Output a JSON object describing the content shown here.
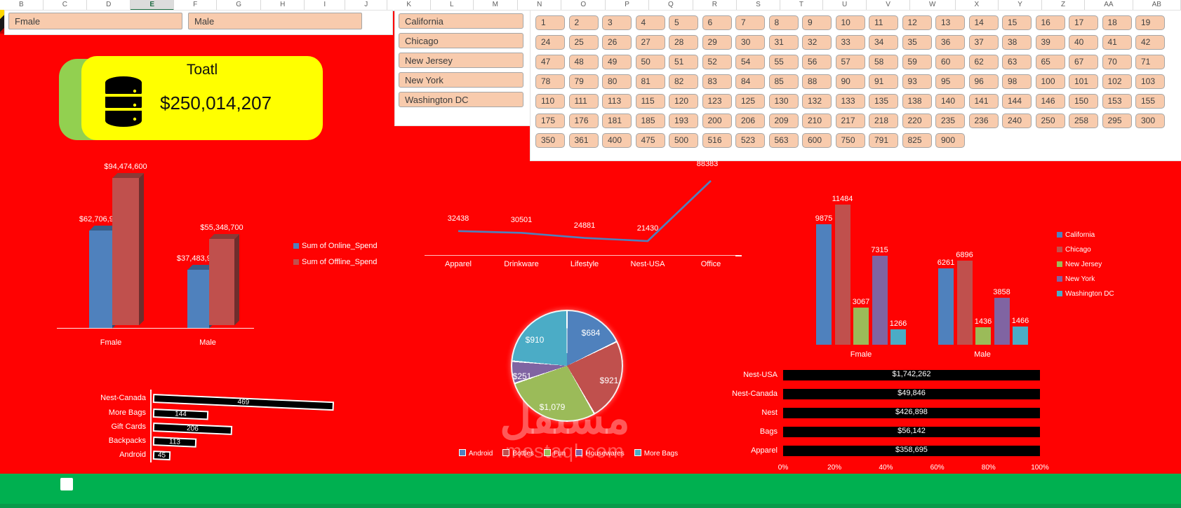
{
  "window": {
    "columns": [
      "B",
      "C",
      "D",
      "E",
      "F",
      "G",
      "H",
      "I",
      "J",
      "K",
      "L",
      "M",
      "N",
      "O",
      "P",
      "Q",
      "R",
      "S",
      "T",
      "U",
      "V",
      "W",
      "X",
      "Y",
      "Z",
      "AA",
      "AB"
    ],
    "selected_column": "E"
  },
  "slicers": {
    "gender": [
      "Fmale",
      "Male"
    ],
    "location": [
      "California",
      "Chicago",
      "New Jersey",
      "New York",
      "Washington DC"
    ],
    "quantity": [
      "1",
      "2",
      "3",
      "4",
      "5",
      "6",
      "7",
      "8",
      "9",
      "10",
      "11",
      "12",
      "13",
      "14",
      "15",
      "16",
      "17",
      "18",
      "19",
      "24",
      "25",
      "26",
      "27",
      "28",
      "29",
      "30",
      "31",
      "32",
      "33",
      "34",
      "35",
      "36",
      "37",
      "38",
      "39",
      "40",
      "41",
      "42",
      "47",
      "48",
      "49",
      "50",
      "51",
      "52",
      "54",
      "55",
      "56",
      "57",
      "58",
      "59",
      "60",
      "62",
      "63",
      "65",
      "67",
      "70",
      "71",
      "78",
      "79",
      "80",
      "81",
      "82",
      "83",
      "84",
      "85",
      "88",
      "90",
      "91",
      "93",
      "95",
      "96",
      "98",
      "100",
      "101",
      "102",
      "103",
      "110",
      "111",
      "113",
      "115",
      "120",
      "123",
      "125",
      "130",
      "132",
      "133",
      "135",
      "138",
      "140",
      "141",
      "144",
      "146",
      "150",
      "153",
      "155",
      "175",
      "176",
      "181",
      "185",
      "193",
      "200",
      "206",
      "209",
      "210",
      "217",
      "218",
      "220",
      "235",
      "236",
      "240",
      "250",
      "258",
      "295",
      "300",
      "350",
      "361",
      "400",
      "475",
      "500",
      "516",
      "523",
      "563",
      "600",
      "750",
      "791",
      "825",
      "900"
    ]
  },
  "card": {
    "title": "Toatl",
    "value": "$250,014,207",
    "icon": "database-icon"
  },
  "colors": {
    "background": "#FF0202",
    "slicer_fill": "#F8CBAD",
    "card_yellow": "#FFFF00",
    "card_green": "#92D050",
    "footer_green": "#00B050",
    "series_blue": "#4F81BD",
    "series_red": "#C0504D",
    "series_green": "#9BBB59",
    "series_purple": "#8064A2",
    "series_teal": "#4BACC6",
    "bar_black": "#000000",
    "label_white": "#FFFFFF"
  },
  "watermark": {
    "line1": "مستقل",
    "line2": "mostaql.com"
  },
  "chart_data": [
    {
      "id": "gender_spend",
      "type": "bar",
      "style": "3d-column",
      "categories": [
        "Fmale",
        "Male"
      ],
      "series": [
        {
          "name": "Sum of Online_Spend",
          "color": "#4F81BD",
          "values": [
            62706916,
            37483991
          ],
          "labels": [
            "$62,706,916",
            "$37,483,991"
          ]
        },
        {
          "name": "Sum of Offline_Spend",
          "color": "#C0504D",
          "values": [
            94474600,
            55348700
          ],
          "labels": [
            "$94,474,600",
            "$55,348,700"
          ]
        }
      ],
      "legend_position": "right",
      "ylim": [
        0,
        100000000
      ],
      "grid": false
    },
    {
      "id": "product_trend",
      "type": "line",
      "x": [
        "Apparel",
        "Drinkware",
        "Lifestyle",
        "Nest-USA",
        "Office"
      ],
      "values": [
        32438,
        30501,
        24881,
        21430,
        88383
      ],
      "line_color": "#4F81BD",
      "ylim": [
        0,
        90000
      ],
      "grid": false,
      "legend_position": "none"
    },
    {
      "id": "location_by_gender",
      "type": "bar",
      "categories": [
        "Fmale",
        "Male"
      ],
      "series": [
        {
          "name": "California",
          "color": "#4F81BD",
          "values": [
            9875,
            6261
          ]
        },
        {
          "name": "Chicago",
          "color": "#C0504D",
          "values": [
            11484,
            6896
          ]
        },
        {
          "name": "New Jersey",
          "color": "#9BBB59",
          "values": [
            3067,
            1436
          ]
        },
        {
          "name": "New York",
          "color": "#8064A2",
          "values": [
            7315,
            3858
          ]
        },
        {
          "name": "Washington DC",
          "color": "#4BACC6",
          "values": [
            1266,
            1466
          ]
        }
      ],
      "legend_position": "right",
      "ylim": [
        0,
        12000
      ],
      "grid": false
    },
    {
      "id": "product_pie",
      "type": "pie",
      "labels": [
        "Android",
        "Bottles",
        "Fun",
        "Housewares",
        "More Bags"
      ],
      "values": [
        684,
        921,
        1079,
        251,
        910
      ],
      "display_labels": [
        "$684",
        "$921",
        "$1,079",
        "$251",
        "$910"
      ],
      "colors": [
        "#4F81BD",
        "#C0504D",
        "#9BBB59",
        "#8064A2",
        "#4BACC6"
      ],
      "legend_position": "bottom"
    },
    {
      "id": "category_quantity",
      "type": "bar",
      "style": "3d-horizontal",
      "categories": [
        "Nest-Canada",
        "More Bags",
        "Gift Cards",
        "Backpacks",
        "Android"
      ],
      "values": [
        469,
        144,
        206,
        113,
        45
      ],
      "bar_color": "#000000",
      "legend_position": "none",
      "grid": false
    },
    {
      "id": "category_sales",
      "type": "bar",
      "style": "horizontal-100pct",
      "categories": [
        "Nest-USA",
        "Nest-Canada",
        "Nest",
        "Bags",
        "Apparel"
      ],
      "labels": [
        "$1,742,262",
        "$49,846",
        "$426,898",
        "$56,142",
        "$358,695"
      ],
      "values_pct": [
        100,
        100,
        100,
        100,
        100
      ],
      "x_ticks": [
        "0%",
        "20%",
        "40%",
        "60%",
        "80%",
        "100%"
      ],
      "bar_color": "#000000",
      "legend_position": "none",
      "grid": false
    }
  ]
}
